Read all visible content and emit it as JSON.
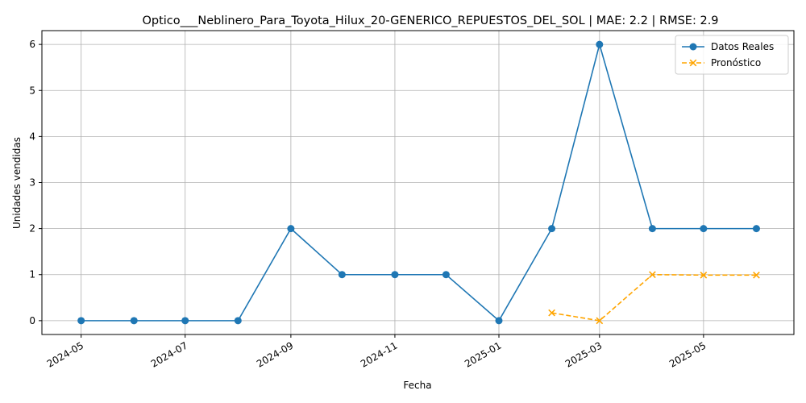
{
  "chart_data": {
    "type": "line",
    "title": "Optico___Neblinero_Para_Toyota_Hilux_20-GENERICO_REPUESTOS_DEL_SOL | MAE: 2.2 | RMSE: 2.9",
    "xlabel": "Fecha",
    "ylabel": "Unidades vendidas",
    "xlim": [
      "2024-04-08",
      "2025-06-23"
    ],
    "ylim": [
      -0.3,
      6.3
    ],
    "x_ticks": [
      "2024-05",
      "2024-07",
      "2024-09",
      "2024-11",
      "2025-01",
      "2025-03",
      "2025-05"
    ],
    "y_ticks": [
      0,
      1,
      2,
      3,
      4,
      5,
      6
    ],
    "grid": true,
    "legend_position": "top-right",
    "series": [
      {
        "name": "Datos Reales",
        "color": "#1f77b4",
        "line_style": "solid",
        "marker": "circle",
        "points": [
          {
            "x": "2024-05-01",
            "y": 0
          },
          {
            "x": "2024-06-01",
            "y": 0
          },
          {
            "x": "2024-07-01",
            "y": 0
          },
          {
            "x": "2024-08-01",
            "y": 0
          },
          {
            "x": "2024-09-01",
            "y": 2
          },
          {
            "x": "2024-10-01",
            "y": 1
          },
          {
            "x": "2024-11-01",
            "y": 1
          },
          {
            "x": "2024-12-01",
            "y": 1
          },
          {
            "x": "2025-01-01",
            "y": 0
          },
          {
            "x": "2025-02-01",
            "y": 2
          },
          {
            "x": "2025-03-01",
            "y": 6
          },
          {
            "x": "2025-04-01",
            "y": 2
          },
          {
            "x": "2025-05-01",
            "y": 2
          },
          {
            "x": "2025-06-01",
            "y": 2
          }
        ]
      },
      {
        "name": "Pronóstico",
        "color": "#ffa500",
        "line_style": "dashed",
        "marker": "x",
        "points": [
          {
            "x": "2025-02-01",
            "y": 0.17
          },
          {
            "x": "2025-03-01",
            "y": 0.0
          },
          {
            "x": "2025-04-01",
            "y": 1.0
          },
          {
            "x": "2025-05-01",
            "y": 0.99
          },
          {
            "x": "2025-06-01",
            "y": 0.99
          }
        ]
      }
    ]
  }
}
